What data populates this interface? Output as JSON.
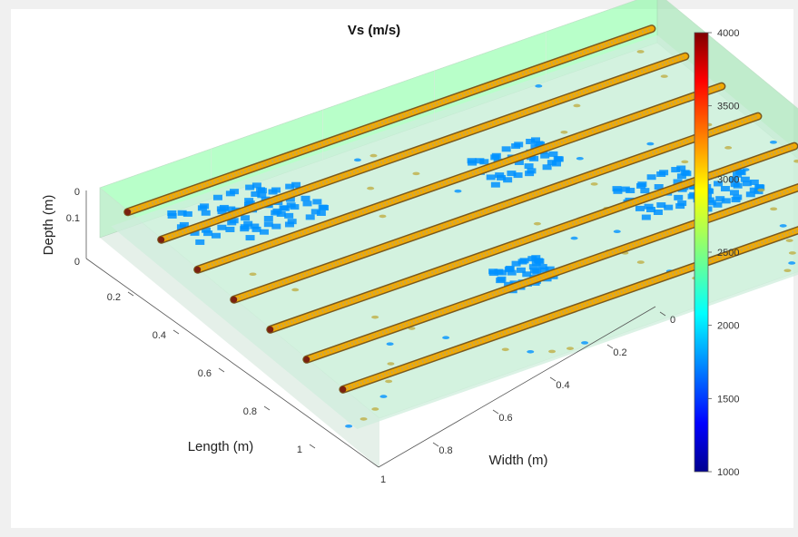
{
  "chart_data": {
    "type": "3d-volume",
    "title": "Vs (m/s)",
    "xlabel": "Width (m)",
    "ylabel": "Length (m)",
    "zlabel": "Depth (m)",
    "x_ticks": [
      "0",
      "0.2",
      "0.4",
      "0.6",
      "0.8"
    ],
    "y_ticks": [
      "0.2",
      "0.4",
      "0.6",
      "0.8",
      "1"
    ],
    "y_ticks_right": [
      "1"
    ],
    "z_ticks": [
      "0",
      "0.1"
    ],
    "z_tick_bottom": "0",
    "colorbar": {
      "colormap": "jet",
      "min": 1000,
      "max": 4000,
      "ticks": [
        "4000",
        "3500",
        "3000",
        "2500",
        "2000",
        "1500",
        "1000"
      ],
      "tick_values": [
        4000,
        3500,
        3000,
        2500,
        2000,
        1500,
        1000
      ]
    },
    "ranges": {
      "x": [
        0,
        1
      ],
      "y": [
        0,
        1
      ],
      "z": [
        0,
        0.15
      ]
    },
    "rebar_velocity": 3100,
    "anomaly_velocity": 1800,
    "background_velocity": 2450
  }
}
